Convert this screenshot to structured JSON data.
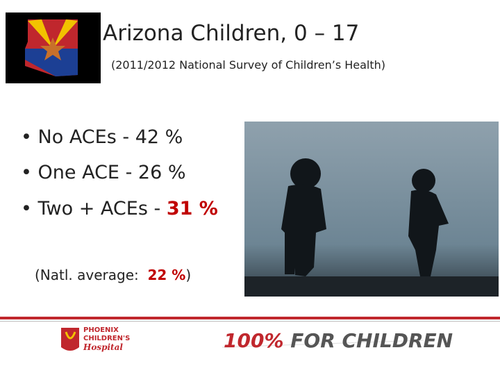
{
  "header": {
    "title": "Arizona Children, 0 – 17",
    "subtitle": "(2011/2012 National Survey of Children’s Health)"
  },
  "bullets": [
    {
      "label": "No ACEs - ",
      "value": "42 %"
    },
    {
      "label": "One ACE - ",
      "value": "26 %"
    },
    {
      "label": "Two + ACEs - ",
      "value": "31 %"
    }
  ],
  "note": {
    "label": "(Natl. average:  ",
    "value": "22 %",
    "close": ")"
  },
  "footer": {
    "logo_lines": [
      "PHOENIX",
      "CHILDREN'S",
      "Hospital"
    ],
    "slogan_number": "100%",
    "slogan_text": "FOR CHILDREN"
  }
}
